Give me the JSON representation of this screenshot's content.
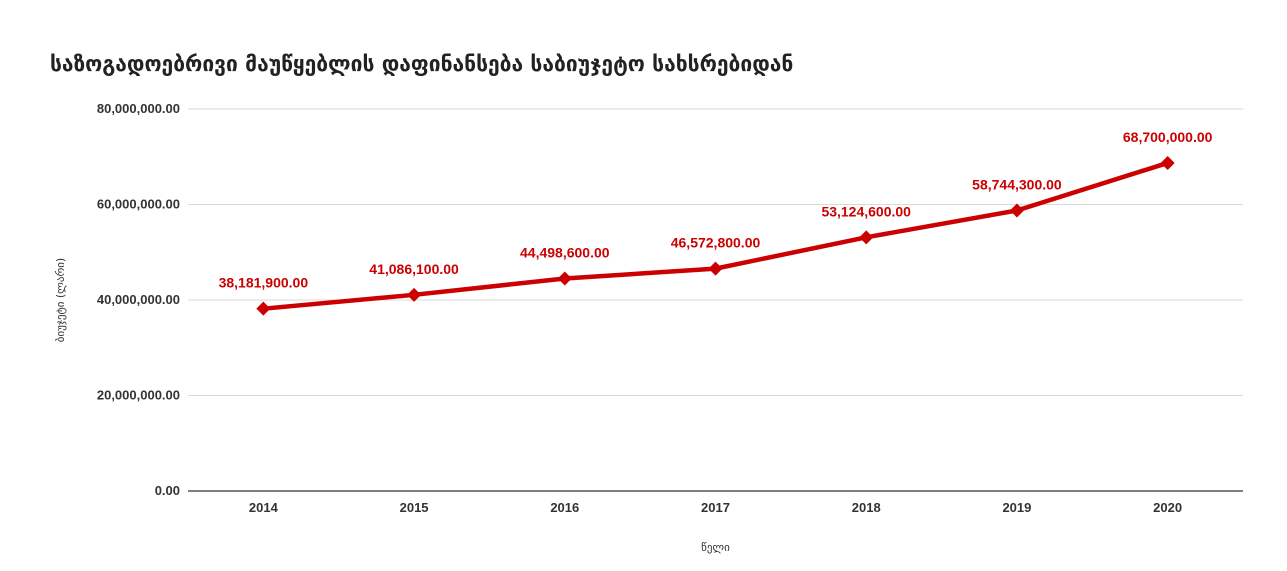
{
  "chart_data": {
    "type": "line",
    "title": "საზოგადოებრივი მაუწყებლის დაფინანსება საბიუჯეტო სახსრებიდან",
    "xlabel": "წელი",
    "ylabel": "ბიუჯეტი (ლარი)",
    "categories": [
      "2014",
      "2015",
      "2016",
      "2017",
      "2018",
      "2019",
      "2020"
    ],
    "series": [
      {
        "values": [
          38181900,
          41086100,
          44498600,
          46572800,
          53124600,
          58744300,
          68700000
        ],
        "labels": [
          "38,181,900.00",
          "41,086,100.00",
          "44,498,600.00",
          "46,572,800.00",
          "53,124,600.00",
          "58,744,300.00",
          "68,700,000.00"
        ],
        "color": "#cc0000"
      }
    ],
    "ylim": [
      0,
      80000000
    ],
    "yticks": [
      0,
      20000000,
      40000000,
      60000000,
      80000000
    ],
    "ytick_labels": [
      "0.00",
      "20,000,000.00",
      "40,000,000.00",
      "60,000,000.00",
      "80,000,000.00"
    ],
    "grid": true,
    "marker": "diamond"
  }
}
